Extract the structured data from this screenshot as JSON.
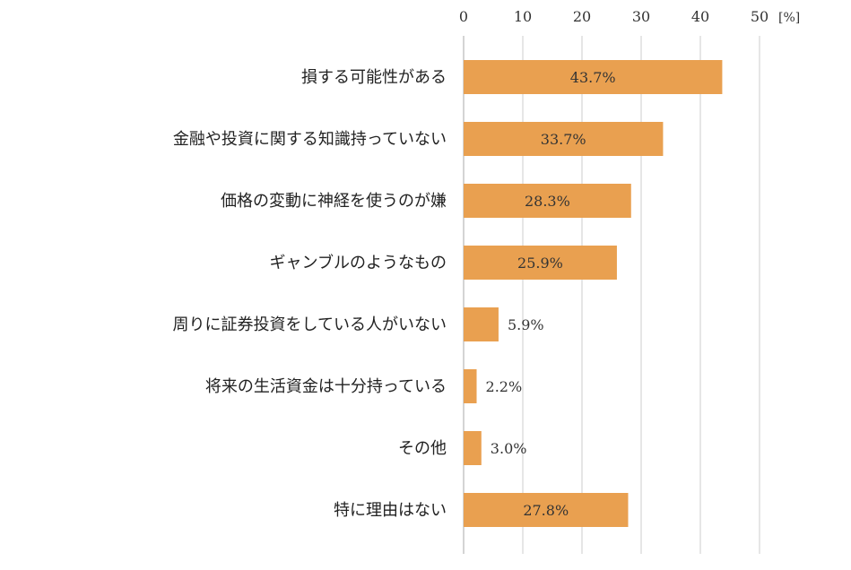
{
  "chart_data": {
    "type": "bar",
    "orientation": "horizontal",
    "categories": [
      "損する可能性がある",
      "金融や投資に関する知識持っていない",
      "価格の変動に神経を使うのが嫌",
      "ギャンブルのようなもの",
      "周りに証券投資をしている人がいない",
      "将来の生活資金は十分持っている",
      "その他",
      "特に理由はない"
    ],
    "values": [
      43.7,
      33.7,
      28.3,
      25.9,
      5.9,
      2.2,
      3.0,
      27.8
    ],
    "data_labels": [
      "43.7%",
      "33.7%",
      "28.3%",
      "25.9%",
      "5.9%",
      "2.2%",
      "3.0%",
      "27.8%"
    ],
    "xlim": [
      0,
      50
    ],
    "ticks": [
      "0",
      "10",
      "20",
      "30",
      "40",
      "50"
    ],
    "tick_values": [
      0,
      10,
      20,
      30,
      40,
      50
    ],
    "unit": "[%]",
    "axis_position": "top",
    "grid": true,
    "legend": false,
    "colors": {
      "bar": "#E9A050",
      "grid": "#cccccc",
      "axis": "#aaaaaa"
    }
  }
}
